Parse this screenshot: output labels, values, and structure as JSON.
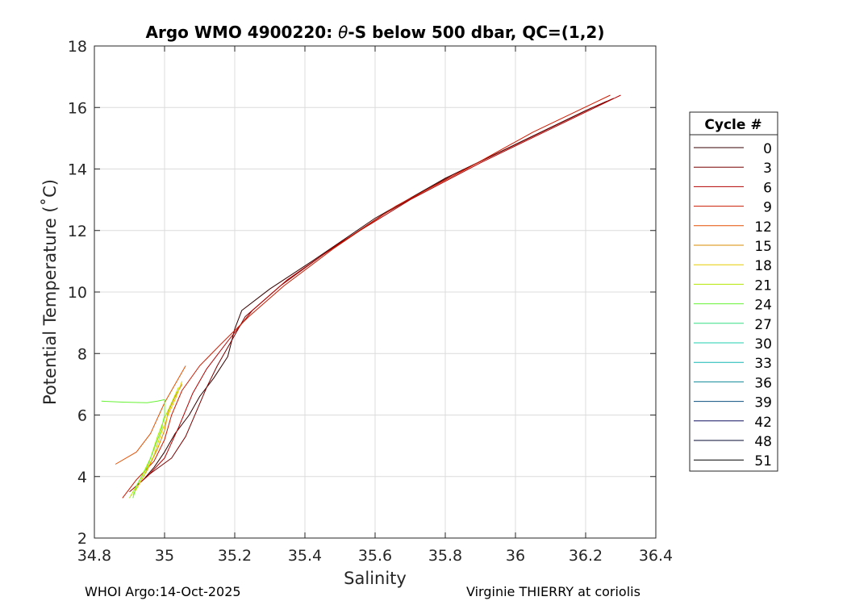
{
  "chart_data": {
    "type": "line",
    "title_parts": [
      "Argo WMO 4900220: ",
      "θ",
      "-S below 500 dbar,  QC=(1,2)"
    ],
    "xlabel": "Salinity",
    "ylabel": "Potential Temperature (˚C)",
    "xlim": [
      34.8,
      36.4
    ],
    "ylim": [
      2,
      18
    ],
    "xticks": [
      "34.8",
      "35",
      "35.2",
      "35.4",
      "35.6",
      "35.8",
      "36",
      "36.2",
      "36.4"
    ],
    "yticks": [
      "2",
      "4",
      "6",
      "8",
      "10",
      "12",
      "14",
      "16",
      "18"
    ],
    "grid": true,
    "legend_title": "Cycle #",
    "legend_position": "right",
    "legend": [
      {
        "label": "0",
        "color": "#350000"
      },
      {
        "label": "3",
        "color": "#7a0000"
      },
      {
        "label": "6",
        "color": "#b30000"
      },
      {
        "label": "9",
        "color": "#cc1a00"
      },
      {
        "label": "12",
        "color": "#e34f00"
      },
      {
        "label": "15",
        "color": "#d98c00"
      },
      {
        "label": "18",
        "color": "#e6cc00"
      },
      {
        "label": "21",
        "color": "#b3e600"
      },
      {
        "label": "24",
        "color": "#66f233"
      },
      {
        "label": "27",
        "color": "#33dd80"
      },
      {
        "label": "30",
        "color": "#1fcfaf"
      },
      {
        "label": "33",
        "color": "#15b5b5"
      },
      {
        "label": "36",
        "color": "#0e8a99"
      },
      {
        "label": "39",
        "color": "#0b4f80"
      },
      {
        "label": "42",
        "color": "#101060"
      },
      {
        "label": "48",
        "color": "#0a0a30"
      },
      {
        "label": "51",
        "color": "#000000"
      }
    ],
    "series": [
      {
        "name": "0",
        "color": "#350000",
        "points": [
          [
            34.94,
            3.9
          ],
          [
            34.97,
            4.3
          ],
          [
            35.0,
            4.8
          ],
          [
            35.03,
            5.4
          ],
          [
            35.07,
            6.0
          ],
          [
            35.1,
            6.6
          ],
          [
            35.14,
            7.2
          ],
          [
            35.18,
            7.9
          ],
          [
            35.2,
            8.8
          ],
          [
            35.22,
            9.4
          ],
          [
            35.3,
            10.1
          ],
          [
            35.42,
            11.0
          ],
          [
            35.6,
            12.4
          ],
          [
            35.8,
            13.7
          ],
          [
            36.0,
            14.8
          ],
          [
            36.2,
            15.9
          ],
          [
            36.26,
            16.2
          ]
        ]
      },
      {
        "name": "3",
        "color": "#7a0000",
        "points": [
          [
            34.92,
            3.7
          ],
          [
            34.96,
            4.1
          ],
          [
            35.02,
            4.6
          ],
          [
            35.06,
            5.3
          ],
          [
            35.09,
            6.1
          ],
          [
            35.12,
            6.9
          ],
          [
            35.15,
            7.6
          ],
          [
            35.19,
            8.4
          ],
          [
            35.23,
            9.2
          ],
          [
            35.33,
            10.2
          ],
          [
            35.45,
            11.2
          ],
          [
            35.62,
            12.5
          ],
          [
            35.82,
            13.8
          ],
          [
            36.02,
            14.9
          ],
          [
            36.22,
            16.0
          ],
          [
            36.28,
            16.3
          ]
        ]
      },
      {
        "name": "6",
        "color": "#b30000",
        "points": [
          [
            34.9,
            3.5
          ],
          [
            34.95,
            4.0
          ],
          [
            35.0,
            4.6
          ],
          [
            35.04,
            5.6
          ],
          [
            35.08,
            6.7
          ],
          [
            35.12,
            7.5
          ],
          [
            35.18,
            8.4
          ],
          [
            35.25,
            9.4
          ],
          [
            35.35,
            10.4
          ],
          [
            35.5,
            11.6
          ],
          [
            35.7,
            13.0
          ],
          [
            35.9,
            14.2
          ],
          [
            36.1,
            15.3
          ],
          [
            36.3,
            16.4
          ]
        ]
      },
      {
        "name": "9",
        "color": "#cc1a00",
        "points": [
          [
            34.88,
            3.3
          ],
          [
            34.92,
            3.9
          ],
          [
            34.97,
            4.5
          ],
          [
            35.0,
            5.2
          ],
          [
            35.02,
            6.0
          ],
          [
            35.05,
            6.8
          ],
          [
            35.1,
            7.6
          ],
          [
            35.16,
            8.3
          ],
          [
            35.24,
            9.2
          ],
          [
            35.34,
            10.2
          ],
          [
            35.48,
            11.4
          ],
          [
            35.66,
            12.8
          ],
          [
            35.86,
            14.0
          ],
          [
            36.05,
            15.2
          ],
          [
            36.27,
            16.4
          ]
        ]
      },
      {
        "name": "12",
        "color": "#e34f00",
        "points": [
          [
            34.86,
            4.4
          ],
          [
            34.92,
            4.8
          ],
          [
            34.96,
            5.4
          ],
          [
            34.98,
            5.9
          ],
          [
            35.0,
            6.4
          ],
          [
            35.02,
            6.8
          ],
          [
            35.04,
            7.2
          ],
          [
            35.06,
            7.6
          ]
        ]
      },
      {
        "name": "15",
        "color": "#d98c00",
        "points": [
          [
            34.92,
            3.6
          ],
          [
            34.95,
            4.2
          ],
          [
            34.98,
            4.9
          ],
          [
            35.0,
            5.5
          ],
          [
            35.01,
            6.1
          ],
          [
            35.03,
            6.6
          ],
          [
            35.05,
            7.0
          ]
        ]
      },
      {
        "name": "18",
        "color": "#e6cc00",
        "points": [
          [
            34.91,
            3.4
          ],
          [
            34.94,
            4.0
          ],
          [
            34.97,
            4.7
          ],
          [
            34.99,
            5.4
          ],
          [
            35.01,
            6.0
          ],
          [
            35.03,
            6.5
          ],
          [
            35.05,
            7.1
          ]
        ]
      },
      {
        "name": "21",
        "color": "#b3e600",
        "points": [
          [
            34.9,
            3.3
          ],
          [
            34.93,
            3.9
          ],
          [
            34.96,
            4.6
          ],
          [
            34.98,
            5.3
          ],
          [
            35.0,
            5.9
          ],
          [
            35.02,
            6.4
          ],
          [
            35.04,
            6.9
          ]
        ]
      },
      {
        "name": "24",
        "color": "#66f233",
        "points": [
          [
            34.82,
            6.45
          ],
          [
            34.88,
            6.42
          ],
          [
            34.95,
            6.4
          ],
          [
            34.98,
            6.45
          ],
          [
            35.0,
            6.5
          ],
          [
            35.0,
            6.0
          ],
          [
            34.99,
            5.5
          ],
          [
            34.97,
            4.9
          ],
          [
            34.95,
            4.3
          ],
          [
            34.92,
            3.7
          ],
          [
            34.91,
            3.3
          ]
        ]
      }
    ]
  },
  "footer": {
    "left": "WHOI Argo:14-Oct-2025",
    "right": "Virginie THIERRY at coriolis"
  }
}
